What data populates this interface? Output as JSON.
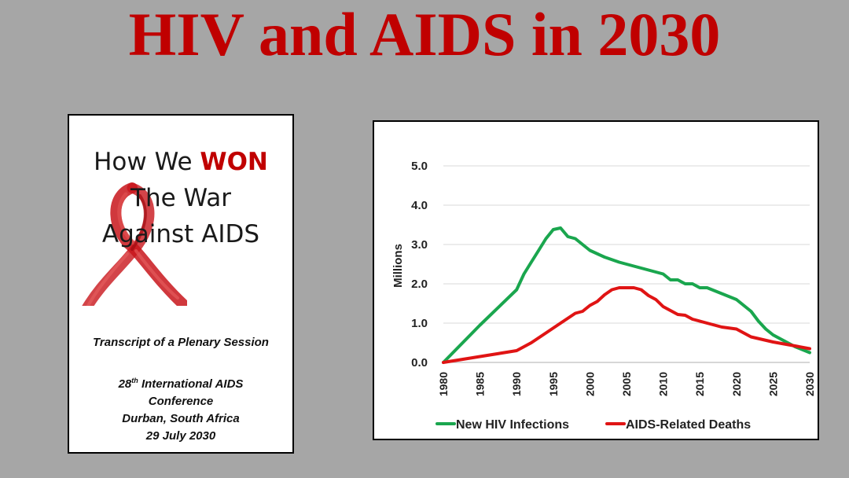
{
  "slide": {
    "title": "HIV and AIDS in 2030"
  },
  "cover": {
    "title_part1": "How We ",
    "title_won": "WON",
    "title_line2": "The War",
    "title_line3": "Against AIDS",
    "transcript": "Transcript of a Plenary Session",
    "conf_num": "28",
    "conf_sup": "th",
    "conf_line1_rest": " International AIDS",
    "conf_line2": "Conference",
    "conf_line3": "Durban, South Africa",
    "conf_line4": "29 July 2030",
    "colors": {
      "accent": "#c00000"
    }
  },
  "chart_data": {
    "type": "line",
    "title": "",
    "xlabel": "",
    "ylabel": "Millions",
    "xlim": [
      1980,
      2030
    ],
    "ylim": [
      0,
      5
    ],
    "x_ticks": [
      1980,
      1985,
      1990,
      1995,
      2000,
      2005,
      2010,
      2015,
      2020,
      2025,
      2030
    ],
    "y_ticks": [
      "0.0",
      "1.0",
      "2.0",
      "3.0",
      "4.0",
      "5.0"
    ],
    "grid": true,
    "legend": "bottom",
    "series": [
      {
        "name": "New HIV Infections",
        "color": "#1aa64e",
        "x": [
          1980,
          1985,
          1990,
          1991,
          1992,
          1993,
          1994,
          1995,
          1996,
          1997,
          1998,
          1999,
          2000,
          2002,
          2004,
          2006,
          2008,
          2010,
          2011,
          2012,
          2013,
          2014,
          2015,
          2016,
          2018,
          2020,
          2022,
          2023,
          2024,
          2025,
          2026,
          2028,
          2030
        ],
        "values": [
          0.0,
          0.95,
          1.85,
          2.25,
          2.55,
          2.85,
          3.15,
          3.38,
          3.42,
          3.2,
          3.15,
          3.0,
          2.85,
          2.68,
          2.55,
          2.45,
          2.35,
          2.25,
          2.1,
          2.1,
          2.0,
          2.0,
          1.9,
          1.9,
          1.75,
          1.6,
          1.3,
          1.05,
          0.85,
          0.7,
          0.6,
          0.4,
          0.25
        ]
      },
      {
        "name": "AIDS-Related Deaths",
        "color": "#e01414",
        "x": [
          1980,
          1985,
          1990,
          1992,
          1994,
          1996,
          1998,
          1999,
          2000,
          2001,
          2002,
          2003,
          2004,
          2005,
          2006,
          2007,
          2008,
          2009,
          2010,
          2012,
          2013,
          2014,
          2016,
          2018,
          2020,
          2022,
          2025,
          2028,
          2030
        ],
        "values": [
          0.0,
          0.15,
          0.3,
          0.5,
          0.75,
          1.0,
          1.25,
          1.3,
          1.45,
          1.55,
          1.72,
          1.85,
          1.9,
          1.9,
          1.9,
          1.85,
          1.7,
          1.6,
          1.42,
          1.22,
          1.2,
          1.1,
          1.0,
          0.9,
          0.85,
          0.65,
          0.52,
          0.42,
          0.35
        ]
      }
    ]
  }
}
